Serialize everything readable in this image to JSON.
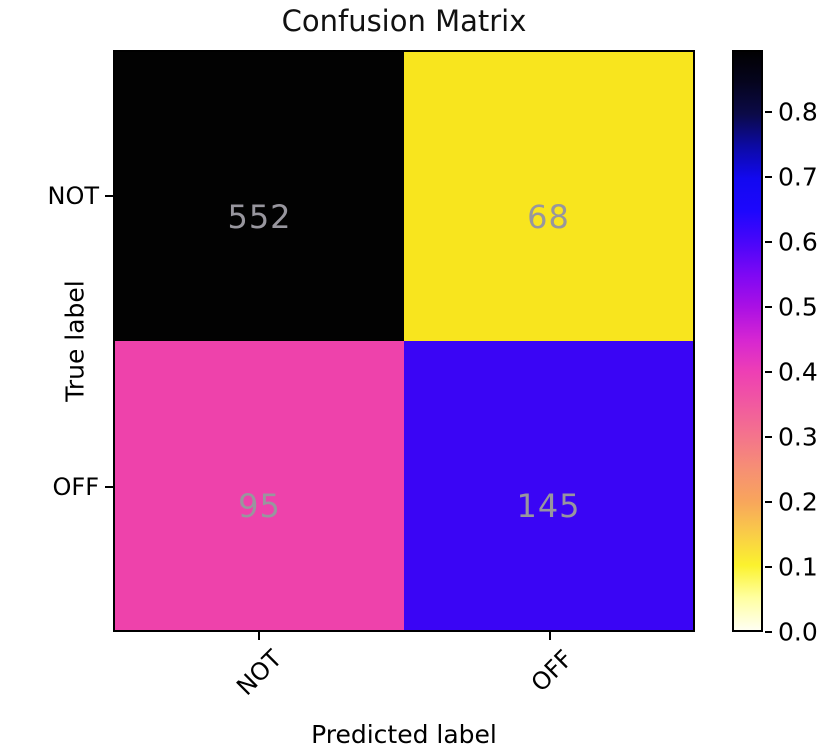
{
  "chart_data": {
    "type": "heatmap",
    "title": "Confusion Matrix",
    "xlabel": "Predicted label",
    "ylabel": "True label",
    "x_tick_labels": [
      "NOT",
      "OFF"
    ],
    "y_tick_labels": [
      "NOT",
      "OFF"
    ],
    "matrix_counts": [
      [
        552,
        68
      ],
      [
        95,
        145
      ]
    ],
    "matrix_normalized": [
      [
        0.89,
        0.11
      ],
      [
        0.4,
        0.6
      ]
    ],
    "cell_colors": [
      [
        "#020202",
        "#f8e51e"
      ],
      [
        "#ee42ab",
        "#3a05f5"
      ]
    ],
    "value_text_color": "#98969e",
    "grid": false,
    "colorbar": {
      "position": "right",
      "vmin": 0.0,
      "vmax": 0.896,
      "tick_values": [
        0.8,
        0.7,
        0.6,
        0.5,
        0.4,
        0.3,
        0.2,
        0.1,
        0.0
      ],
      "tick_labels": [
        "0.8",
        "0.7",
        "0.6",
        "0.5",
        "0.4",
        "0.3",
        "0.2",
        "0.1",
        "0.0"
      ],
      "gradient_stops": [
        {
          "frac": 0.0,
          "color": "#fffff2"
        },
        {
          "frac": 0.056,
          "color": "#ffffa0"
        },
        {
          "frac": 0.112,
          "color": "#fbf22e"
        },
        {
          "frac": 0.167,
          "color": "#f9cc48"
        },
        {
          "frac": 0.223,
          "color": "#f8a55c"
        },
        {
          "frac": 0.279,
          "color": "#f68f74"
        },
        {
          "frac": 0.335,
          "color": "#f4748c"
        },
        {
          "frac": 0.391,
          "color": "#f159a0"
        },
        {
          "frac": 0.446,
          "color": "#ee3fb4"
        },
        {
          "frac": 0.502,
          "color": "#d626d2"
        },
        {
          "frac": 0.558,
          "color": "#ab10e4"
        },
        {
          "frac": 0.614,
          "color": "#7e08f4"
        },
        {
          "frac": 0.67,
          "color": "#4a06fa"
        },
        {
          "frac": 0.725,
          "color": "#1d07fd"
        },
        {
          "frac": 0.781,
          "color": "#1208f0"
        },
        {
          "frac": 0.837,
          "color": "#0c0aa4"
        },
        {
          "frac": 0.893,
          "color": "#0b0a47"
        },
        {
          "frac": 0.949,
          "color": "#05041d"
        },
        {
          "frac": 1.0,
          "color": "#020103"
        }
      ]
    }
  }
}
